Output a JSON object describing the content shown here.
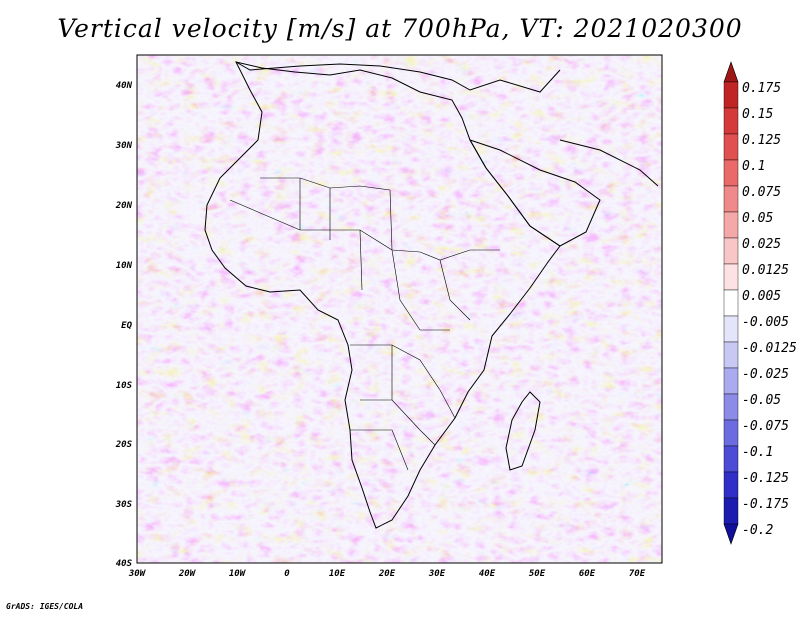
{
  "title": "Vertical velocity [m/s] at 700hPa, VT: 2021020300",
  "credit": "GrADS: IGES/COLA",
  "map": {
    "lon_range": [
      -30,
      75
    ],
    "lat_range": [
      -40,
      45
    ],
    "lat_ticks": [
      "40N",
      "30N",
      "20N",
      "10N",
      "EQ",
      "10S",
      "20S",
      "30S",
      "40S"
    ],
    "lon_ticks": [
      "30W",
      "20W",
      "10W",
      "0",
      "10E",
      "20E",
      "30E",
      "40E",
      "50E",
      "60E",
      "70E"
    ]
  },
  "colorbar": {
    "labels": [
      "0.175",
      "0.15",
      "0.125",
      "0.1",
      "0.075",
      "0.05",
      "0.025",
      "0.0125",
      "0.005",
      "-0.005",
      "-0.0125",
      "-0.025",
      "-0.05",
      "-0.075",
      "-0.1",
      "-0.125",
      "-0.175",
      "-0.2"
    ],
    "colors": [
      "#a01515",
      "#c02424",
      "#d43a3a",
      "#e05050",
      "#ea6a6a",
      "#f08a8a",
      "#f4a8a8",
      "#f8c6c6",
      "#fce2e2",
      "#ffffff",
      "#e4e4fa",
      "#c8c8f4",
      "#aaaaee",
      "#8c8ce8",
      "#6c6ce0",
      "#4c4cd6",
      "#3030c8",
      "#1c1cb0",
      "#10109a"
    ]
  }
}
